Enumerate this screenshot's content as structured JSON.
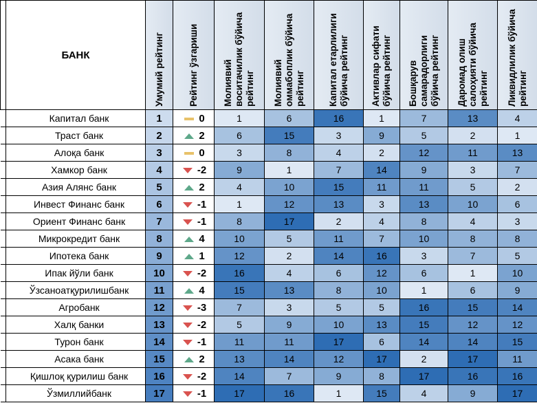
{
  "table": {
    "header": [
      "БАНК",
      "Умумий рейтинг",
      "Рейтинг ўзгариши",
      "Молиявий воситачилик бўйича рейтинг",
      "Молиявий оммабоплик бўйича рейтинг",
      "Капитал етарлилиги бўйича рейтинг",
      "Активлар сифати бўйича рейтинг",
      "Бошқарув самарадорлиги бўйича рейтинг",
      "Даромад олиш салоҳияти бўйича рейтинг",
      "Ликвидлилик бўйича рейтинг"
    ],
    "rows": [
      [
        "Капитал банк",
        1,
        0,
        1,
        6,
        16,
        1,
        7,
        13,
        4
      ],
      [
        "Траст банк",
        2,
        2,
        6,
        15,
        3,
        9,
        5,
        2,
        1
      ],
      [
        "Алоқа банк",
        3,
        0,
        3,
        8,
        4,
        2,
        12,
        11,
        13
      ],
      [
        "Хамкор банк",
        4,
        -2,
        9,
        1,
        7,
        14,
        9,
        3,
        7
      ],
      [
        "Азия Алянс банк",
        5,
        2,
        4,
        10,
        15,
        11,
        11,
        5,
        2
      ],
      [
        "Инвест Финанс банк",
        6,
        -1,
        1,
        12,
        13,
        3,
        13,
        10,
        6
      ],
      [
        "Ориент Финанс банк",
        7,
        -1,
        8,
        17,
        2,
        4,
        8,
        4,
        3
      ],
      [
        "Микрокредит банк",
        8,
        4,
        10,
        5,
        11,
        7,
        10,
        8,
        8
      ],
      [
        "Ипотека банк",
        9,
        1,
        12,
        2,
        14,
        16,
        3,
        7,
        5
      ],
      [
        "Ипак йўли банк",
        10,
        -2,
        16,
        4,
        6,
        12,
        6,
        1,
        10
      ],
      [
        "Ўзсаноатқурилишбанк",
        11,
        4,
        15,
        13,
        8,
        10,
        1,
        6,
        9
      ],
      [
        "Агробанк",
        12,
        -3,
        7,
        3,
        5,
        5,
        16,
        15,
        14
      ],
      [
        "Халқ банки",
        13,
        -2,
        5,
        9,
        10,
        13,
        15,
        12,
        12
      ],
      [
        "Турон банк",
        14,
        -1,
        11,
        11,
        17,
        6,
        14,
        14,
        15
      ],
      [
        "Асака банк",
        15,
        2,
        13,
        14,
        12,
        17,
        2,
        17,
        11
      ],
      [
        "Қишлоқ қурилиш банк",
        16,
        -2,
        14,
        7,
        9,
        8,
        17,
        16,
        16
      ],
      [
        "Ўзмиллийбанк",
        17,
        -1,
        17,
        16,
        1,
        15,
        4,
        9,
        17
      ]
    ]
  }
}
